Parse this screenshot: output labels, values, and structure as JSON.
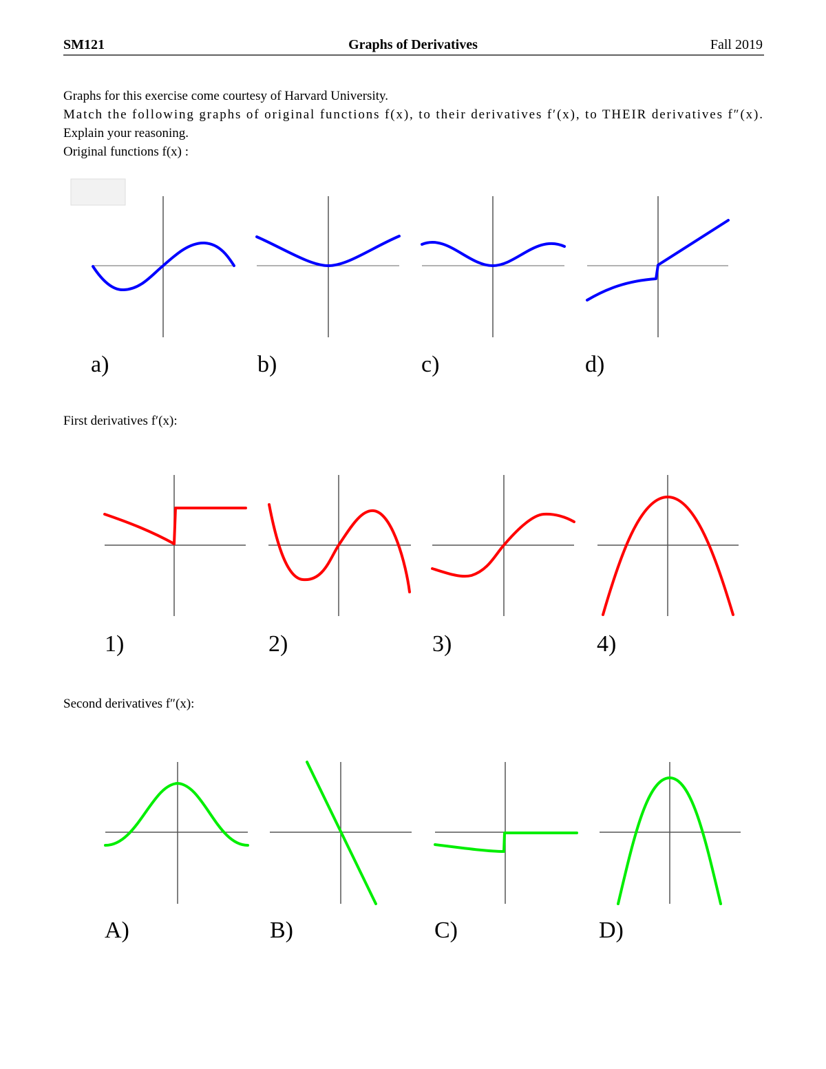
{
  "header": {
    "course": "SM121",
    "title": "Graphs of Derivatives",
    "term": "Fall 2019"
  },
  "intro": [
    "Graphs for this exercise come courtesy of Harvard University.",
    "Match the following graphs of original functions f(x), to their derivatives f′(x), to THEIR derivatives f″(x).",
    "Explain your reasoning."
  ],
  "sections": [
    {
      "heading": "Original functions f(x) :",
      "labels": [
        "a)",
        "b)",
        "c)",
        "d)"
      ]
    },
    {
      "heading": "First derivatives f′(x):",
      "labels": [
        "1)",
        "2)",
        "3)",
        "4)"
      ]
    },
    {
      "heading": "Second derivatives f″(x):",
      "labels": [
        "A)",
        "B)",
        "C)",
        "D)"
      ]
    }
  ]
}
